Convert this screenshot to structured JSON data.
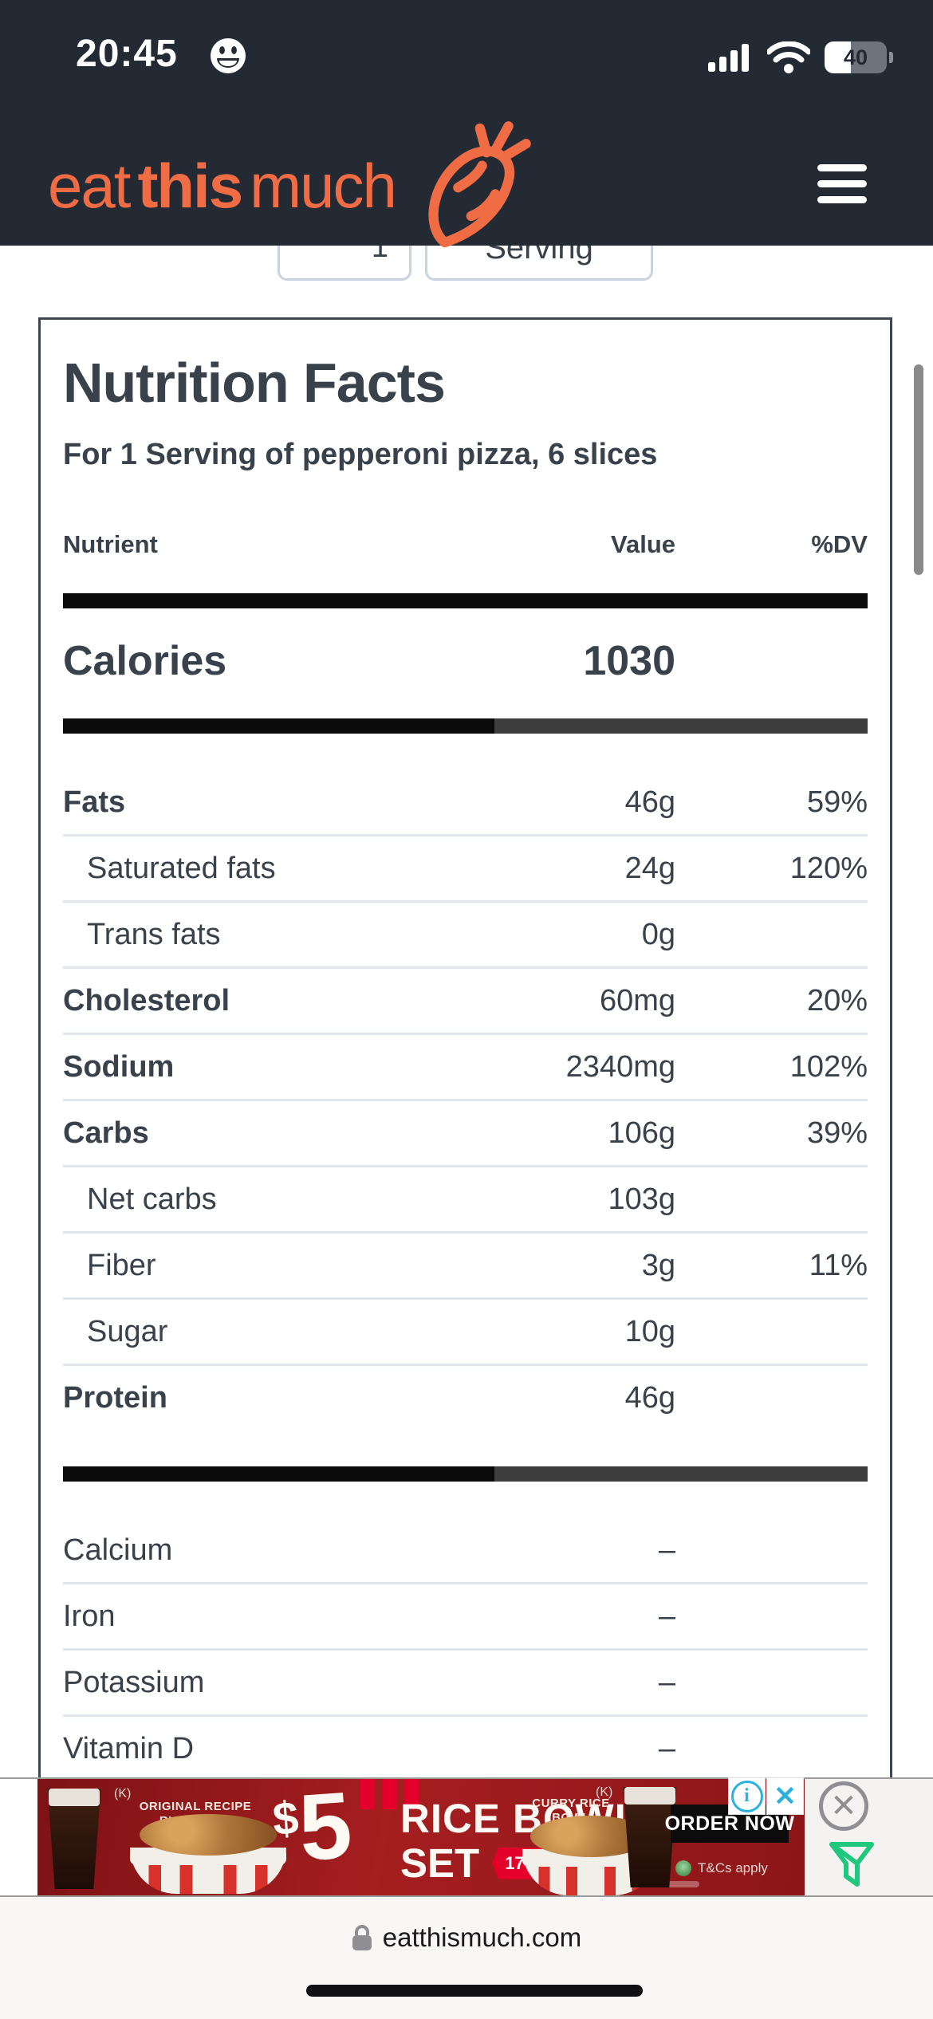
{
  "status_bar": {
    "time": "20:45",
    "battery_percent": "40"
  },
  "header": {
    "logo_eat": "eat",
    "logo_this": "this",
    "logo_much": "much"
  },
  "controls": {
    "quantity_value": "1",
    "serving_label": "Serving"
  },
  "nutrition": {
    "title": "Nutrition Facts",
    "subtitle": "For 1 Serving of pepperoni pizza, 6 slices",
    "col_nutrient": "Nutrient",
    "col_value": "Value",
    "col_dv": "%DV",
    "calories_label": "Calories",
    "calories_value": "1030",
    "progress_percent": 53.6,
    "rows": [
      {
        "label": "Fats",
        "value": "46g",
        "dv": "59%",
        "bold": true,
        "indent": false
      },
      {
        "label": "Saturated fats",
        "value": "24g",
        "dv": "120%",
        "bold": false,
        "indent": true
      },
      {
        "label": "Trans fats",
        "value": "0g",
        "dv": "",
        "bold": false,
        "indent": true
      },
      {
        "label": "Cholesterol",
        "value": "60mg",
        "dv": "20%",
        "bold": true,
        "indent": false
      },
      {
        "label": "Sodium",
        "value": "2340mg",
        "dv": "102%",
        "bold": true,
        "indent": false
      },
      {
        "label": "Carbs",
        "value": "106g",
        "dv": "39%",
        "bold": true,
        "indent": false
      },
      {
        "label": "Net carbs",
        "value": "103g",
        "dv": "",
        "bold": false,
        "indent": true
      },
      {
        "label": "Fiber",
        "value": "3g",
        "dv": "11%",
        "bold": false,
        "indent": true
      },
      {
        "label": "Sugar",
        "value": "10g",
        "dv": "",
        "bold": false,
        "indent": true
      },
      {
        "label": "Protein",
        "value": "46g",
        "dv": "",
        "bold": true,
        "indent": false
      }
    ],
    "minerals": [
      {
        "label": "Calcium",
        "value": "–",
        "dv": "",
        "bold": false,
        "indent": false
      },
      {
        "label": "Iron",
        "value": "–",
        "dv": "",
        "bold": false,
        "indent": false
      },
      {
        "label": "Potassium",
        "value": "–",
        "dv": "",
        "bold": false,
        "indent": false
      },
      {
        "label": "Vitamin D",
        "value": "–",
        "dv": "",
        "bold": false,
        "indent": false
      }
    ]
  },
  "ad": {
    "price_dollar": "$",
    "price_number": "5",
    "headline": "RICE BOWL",
    "headline2": "SET",
    "dates": "17 - 28 MAR",
    "left_caption": "ORIGINAL RECIPE RICE BOWL",
    "right_caption": "CURRY RICE BOWL",
    "k_mark": "(K)",
    "cta": "ORDER NOW",
    "tncs": "T&Cs apply",
    "info_glyph": "i",
    "close_glyph": "✕"
  },
  "browser": {
    "url": "eatthismuch.com"
  },
  "colors": {
    "accent_orange": "#ef6c45",
    "header_bg": "#232a33",
    "text": "#39424b",
    "divider": "#dfe6ec",
    "bar_black": "#0b0b0b",
    "bar_gray": "#3e3e3e",
    "ad_red": "#9c191d",
    "ad_ribbon_red": "#e4002b",
    "adchoices_blue": "#2bb1e0",
    "funnel_green": "#1fc77f"
  }
}
